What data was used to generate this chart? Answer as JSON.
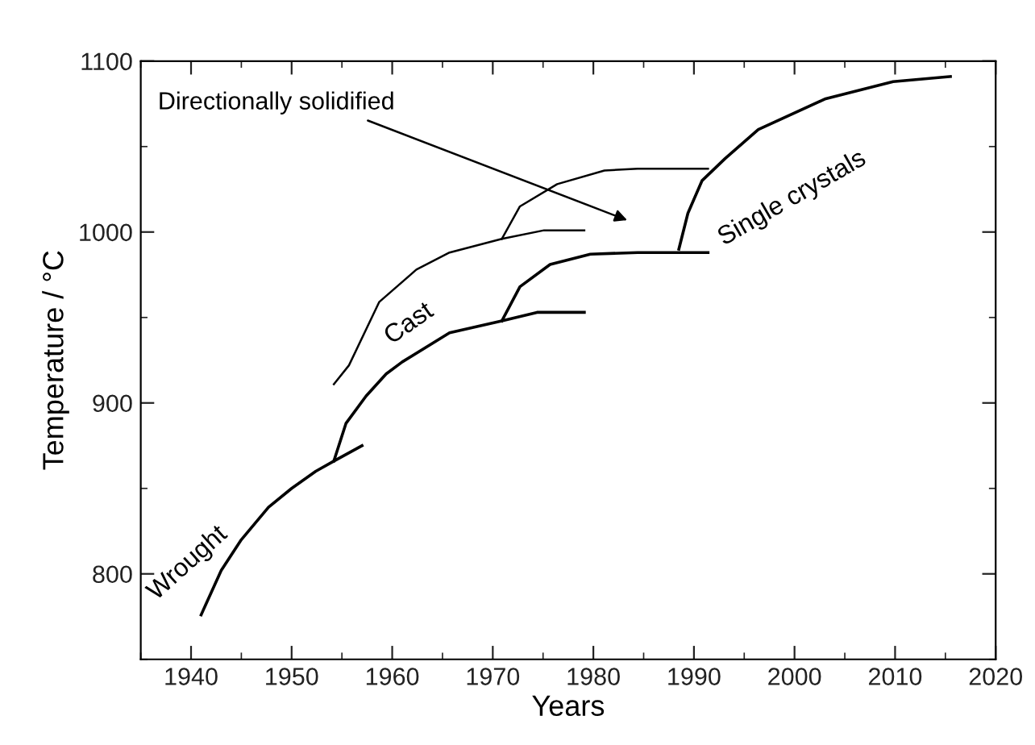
{
  "chart_data": {
    "type": "line",
    "xlabel": "Years",
    "ylabel": "Temperature / °C",
    "xlim": [
      1935,
      2020
    ],
    "ylim": [
      750,
      1100
    ],
    "xticks": [
      1940,
      1950,
      1960,
      1970,
      1980,
      1990,
      2000,
      2010,
      2020
    ],
    "yticks": [
      800,
      900,
      1000,
      1100
    ],
    "grid": false,
    "legend": false,
    "marker": "none",
    "line_style": "solid",
    "series": [
      {
        "color": "#000000",
        "x": [
          1941.0,
          1943.0,
          1945.0,
          1947.7,
          1950.0,
          1952.4,
          1954.2,
          1957.0
        ],
        "values": [
          776,
          802,
          820,
          839,
          850,
          860,
          866,
          875
        ]
      },
      {
        "color": "#000000",
        "x": [
          1954.2,
          1955.4,
          1957.4,
          1959.4,
          1961.0,
          1965.7,
          1970.9,
          1974.4,
          1979.1
        ],
        "values": [
          866,
          888,
          904,
          917,
          924,
          941,
          948,
          953,
          953
        ]
      },
      {
        "color": "#000000",
        "x": [
          1970.9,
          1972.7,
          1975.7,
          1979.7,
          1984.4,
          1991.4
        ],
        "values": [
          948,
          968,
          981,
          987,
          988,
          988
        ]
      },
      {
        "color": "#000000",
        "x": [
          1988.5,
          1989.4,
          1990.8,
          1993.1,
          1996.4,
          2003.1,
          2009.8,
          2015.5
        ],
        "values": [
          990,
          1011,
          1030,
          1043,
          1060,
          1078,
          1088,
          1091
        ]
      },
      {
        "color": "#000000",
        "x": [
          1954.2,
          1955.7,
          1958.7,
          1962.4,
          1965.7,
          1970.9,
          1975.1,
          1979.1
        ],
        "values": [
          911,
          922,
          959,
          978,
          988,
          996,
          1001,
          1001
        ]
      },
      {
        "color": "#000000",
        "x": [
          1970.9,
          1972.7,
          1976.4,
          1981.1,
          1984.4,
          1991.4
        ],
        "values": [
          996,
          1015,
          1028,
          1036,
          1037,
          1037
        ]
      }
    ],
    "annotations": [
      "Wrought",
      "Cast",
      "Single crystals",
      "Directionally solidified"
    ]
  }
}
